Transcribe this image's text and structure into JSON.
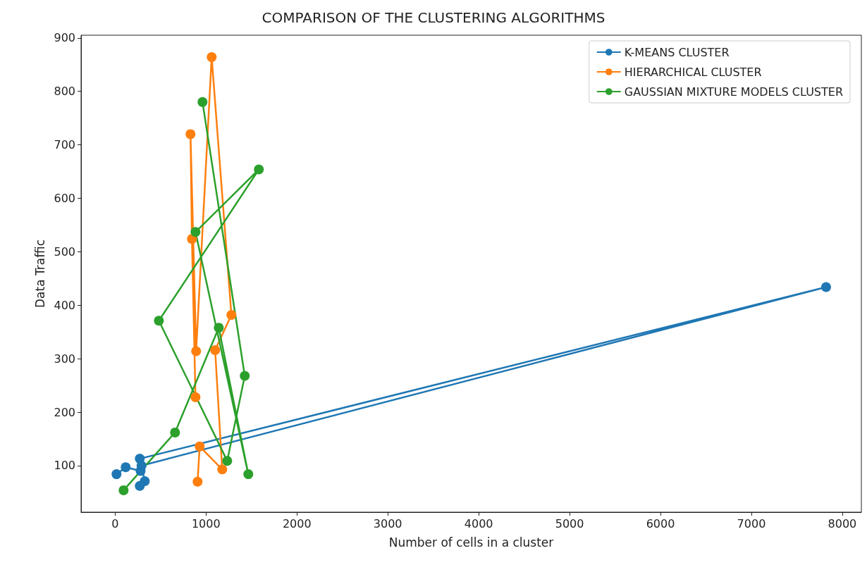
{
  "chart_data": {
    "type": "line",
    "title": "COMPARISON OF THE CLUSTERING ALGORITHMS",
    "xlabel": "Number of cells in a cluster",
    "ylabel": "Data Traffic",
    "xlim": [
      -375,
      8210
    ],
    "xticks": [
      0,
      1000,
      2000,
      3000,
      4000,
      5000,
      6000,
      7000,
      8000
    ],
    "ylim": [
      13,
      905
    ],
    "yticks": [
      100,
      200,
      300,
      400,
      500,
      600,
      700,
      800,
      900
    ],
    "grid": false,
    "legend": "top right",
    "marker": "circle",
    "line_style": "solid",
    "series": [
      {
        "name": "K-MEANS CLUSTER",
        "color": "#1f77b4",
        "x": [
          15,
          116,
          280,
          271,
          7822,
          290,
          326,
          271
        ],
        "values": [
          84,
          97,
          90,
          113,
          434,
          100,
          71,
          62
        ]
      },
      {
        "name": "HIERARCHICAL CLUSTER",
        "color": "#ff7f0e",
        "x": [
          884,
          845,
          829,
          891,
          1062,
          1279,
          1100,
          1178,
          930,
          907
        ],
        "values": [
          228,
          524,
          720,
          314,
          864,
          382,
          316,
          93,
          136,
          70
        ]
      },
      {
        "name": "GAUSSIAN MIXTURE MODELS CLUSTER",
        "color": "#2ca02c",
        "x": [
          93,
          659,
          1140,
          1465,
          884,
          1581,
          481,
          1233,
          1426,
          961
        ],
        "values": [
          54,
          162,
          358,
          84,
          537,
          654,
          371,
          109,
          268,
          780
        ]
      }
    ]
  }
}
